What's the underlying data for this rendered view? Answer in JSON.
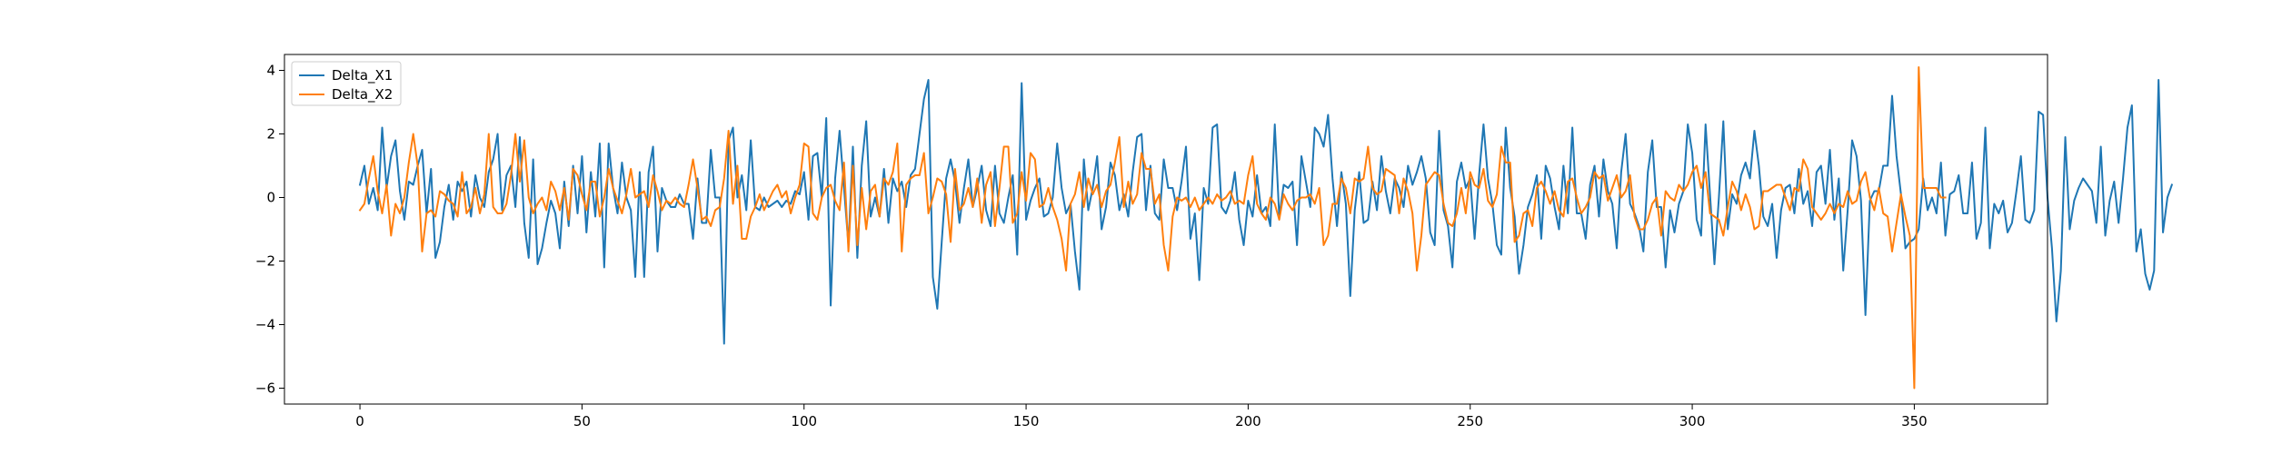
{
  "chart_data": {
    "type": "line",
    "title": "",
    "xlabel": "",
    "ylabel": "",
    "xlim": [
      -17,
      380
    ],
    "ylim": [
      -6.5,
      4.5
    ],
    "xticks": [
      0,
      50,
      100,
      150,
      200,
      250,
      300,
      350
    ],
    "yticks": [
      -6,
      -4,
      -2,
      0,
      2,
      4
    ],
    "grid": false,
    "legend": "upper-left",
    "series": [
      {
        "name": "Delta_X1",
        "color": "#1f77b4",
        "values": [
          0.4,
          1.0,
          -0.2,
          0.3,
          -0.4,
          2.2,
          0.3,
          1.3,
          1.8,
          0.2,
          -0.7,
          0.5,
          0.4,
          1.0,
          1.5,
          -0.5,
          0.9,
          -1.9,
          -1.4,
          -0.3,
          0.4,
          -0.7,
          0.5,
          0.2,
          0.5,
          -0.6,
          0.7,
          0.0,
          -0.3,
          0.8,
          1.2,
          2.0,
          -0.4,
          0.7,
          1.0,
          -0.3,
          1.9,
          -0.8,
          -1.9,
          1.2,
          -2.1,
          -1.6,
          -0.8,
          -0.1,
          -0.5,
          -1.6,
          0.5,
          -0.9,
          1.0,
          -0.5,
          1.3,
          -1.1,
          0.8,
          -0.6,
          1.7,
          -2.2,
          1.7,
          0.3,
          -0.5,
          1.1,
          0.0,
          -0.4,
          -2.5,
          0.8,
          -2.5,
          0.8,
          1.6,
          -1.7,
          0.3,
          -0.1,
          -0.3,
          -0.3,
          0.1,
          -0.2,
          -0.2,
          -1.3,
          0.6,
          -0.8,
          -0.8,
          1.5,
          0.0,
          0.0,
          -4.6,
          1.8,
          2.2,
          0.0,
          0.7,
          -0.4,
          1.8,
          -0.3,
          -0.4,
          0.0,
          -0.3,
          -0.2,
          -0.1,
          -0.3,
          -0.1,
          -0.2,
          0.2,
          0.1,
          0.8,
          -0.7,
          1.3,
          1.4,
          0.0,
          2.5,
          -3.4,
          0.6,
          2.1,
          0.3,
          -1.5,
          1.6,
          -1.9,
          1.0,
          2.4,
          -0.6,
          0.0,
          -0.6,
          0.9,
          -0.8,
          0.6,
          0.2,
          0.5,
          -0.3,
          0.7,
          0.9,
          2.0,
          3.1,
          3.7,
          -2.5,
          -3.5,
          -1.4,
          0.6,
          1.2,
          0.5,
          -0.8,
          0.3,
          1.2,
          -0.3,
          0.3,
          1.0,
          -0.4,
          -0.9,
          1.0,
          -0.5,
          -0.8,
          0.0,
          0.7,
          -1.8,
          3.6,
          -0.7,
          -0.1,
          0.3,
          0.6,
          -0.6,
          -0.5,
          0.0,
          1.7,
          0.3,
          -0.5,
          -0.2,
          -1.7,
          -2.9,
          1.2,
          -0.4,
          0.3,
          1.3,
          -1.0,
          -0.3,
          1.1,
          0.7,
          -0.4,
          0.1,
          -0.6,
          0.8,
          1.9,
          2.0,
          -0.4,
          1.0,
          -0.5,
          -0.7,
          1.2,
          0.3,
          0.3,
          -0.4,
          0.5,
          1.6,
          -1.3,
          -0.5,
          -2.6,
          0.3,
          -0.2,
          2.2,
          2.3,
          -0.3,
          -0.5,
          -0.1,
          0.8,
          -0.7,
          -1.5,
          -0.1,
          -0.6,
          0.7,
          -0.5,
          -0.3,
          -0.9,
          2.3,
          -0.6,
          0.4,
          0.3,
          0.5,
          -1.5,
          1.3,
          0.5,
          -0.3,
          2.2,
          2.0,
          1.6,
          2.6,
          0.6,
          -0.9,
          0.8,
          -0.2,
          -3.1,
          -0.4,
          0.8,
          -0.8,
          -0.7,
          0.5,
          -0.4,
          1.3,
          0.2,
          -0.5,
          0.6,
          0.3,
          -0.3,
          1.0,
          0.4,
          0.8,
          1.3,
          0.6,
          -1.1,
          -1.5,
          2.1,
          -0.4,
          -0.9,
          -2.2,
          0.5,
          1.1,
          0.3,
          0.6,
          -1.3,
          0.7,
          2.3,
          0.6,
          -0.2,
          -1.5,
          -1.8,
          2.2,
          0.3,
          -0.6,
          -2.4,
          -1.5,
          -0.3,
          0.1,
          0.7,
          -1.3,
          1.0,
          0.6,
          -0.3,
          -1.0,
          1.0,
          -0.5,
          2.2,
          -0.5,
          -0.5,
          -1.3,
          0.4,
          1.0,
          -0.6,
          1.2,
          0.2,
          -0.2,
          -1.6,
          0.8,
          2.0,
          -0.2,
          -0.5,
          -0.9,
          -1.7,
          0.8,
          1.8,
          -0.3,
          -0.3,
          -2.2,
          -0.4,
          -1.1,
          -0.2,
          0.2,
          2.3,
          1.4,
          -0.7,
          -1.2,
          2.3,
          0.1,
          -2.1,
          0.0,
          2.4,
          -1.0,
          0.1,
          -0.2,
          0.7,
          1.1,
          0.6,
          2.1,
          1.0,
          -0.6,
          -0.9,
          -0.2,
          -1.9,
          -0.4,
          0.3,
          0.4,
          -0.5,
          0.9,
          -0.2,
          0.2,
          -0.9,
          0.8,
          1.0,
          -0.2,
          1.5,
          -0.7,
          0.6,
          -2.3,
          -0.4,
          1.8,
          1.3,
          -0.1,
          -3.7,
          -0.1,
          0.2,
          0.2,
          1.0,
          1.0,
          3.2,
          1.3,
          0.1,
          -1.6,
          -1.4,
          -1.3,
          -1.0,
          0.6,
          -0.4,
          0.0,
          -0.5,
          1.1,
          -1.2,
          0.1,
          0.2,
          0.7,
          -0.5,
          -0.5,
          1.1,
          -1.3,
          -0.8,
          2.2,
          -1.6,
          -0.2,
          -0.5,
          -0.1,
          -1.1,
          -0.8,
          0.2,
          1.3,
          -0.7,
          -0.8,
          -0.4,
          2.7,
          2.6,
          0.0,
          -1.6,
          -3.9,
          -2.3,
          1.9,
          -1.0,
          -0.1,
          0.3,
          0.6,
          0.4,
          0.2,
          -0.8,
          1.6,
          -1.2,
          -0.1,
          0.5,
          -0.8,
          0.6,
          2.2,
          2.9,
          -1.7,
          -1.0,
          -2.4,
          -2.9,
          -2.3,
          3.7,
          -1.1,
          0.0,
          0.4
        ]
      },
      {
        "name": "Delta_X2",
        "color": "#ff7f0e",
        "values": [
          -0.4,
          -0.2,
          0.6,
          1.3,
          0.2,
          -0.5,
          0.4,
          -1.2,
          -0.2,
          -0.5,
          0.0,
          1.1,
          2.0,
          1.0,
          -1.7,
          -0.5,
          -0.4,
          -0.6,
          0.2,
          0.1,
          -0.1,
          -0.2,
          -0.6,
          0.8,
          -0.5,
          -0.3,
          0.3,
          -0.5,
          0.1,
          2.0,
          -0.3,
          -0.5,
          -0.5,
          -0.2,
          0.7,
          2.0,
          0.5,
          1.8,
          0.0,
          -0.5,
          -0.2,
          0.0,
          -0.4,
          0.5,
          0.2,
          -0.4,
          0.3,
          -0.7,
          0.9,
          0.7,
          0.1,
          -0.4,
          0.5,
          0.5,
          -0.6,
          0.0,
          0.9,
          0.3,
          -0.1,
          -0.5,
          0.1,
          0.9,
          0.0,
          0.1,
          0.2,
          -0.3,
          0.7,
          0.2,
          -0.4,
          -0.1,
          -0.2,
          0.0,
          -0.2,
          -0.3,
          0.4,
          1.2,
          0.3,
          -0.7,
          -0.6,
          -0.9,
          -0.4,
          -0.3,
          0.6,
          2.1,
          -0.2,
          1.0,
          -1.3,
          -1.3,
          -0.6,
          -0.3,
          0.1,
          -0.4,
          -0.1,
          0.2,
          0.4,
          0.0,
          0.2,
          -0.5,
          0.0,
          0.4,
          1.7,
          1.6,
          -0.5,
          -0.7,
          0.0,
          0.3,
          0.4,
          -0.1,
          -0.4,
          1.1,
          -1.7,
          1.0,
          -1.5,
          0.3,
          -1.0,
          0.2,
          0.4,
          -0.6,
          0.6,
          0.4,
          0.8,
          1.7,
          -1.7,
          0.4,
          0.6,
          0.7,
          0.7,
          1.4,
          -0.5,
          0.0,
          0.6,
          0.5,
          0.1,
          -1.4,
          0.9,
          -0.4,
          -0.2,
          0.3,
          -0.3,
          0.6,
          -0.8,
          0.4,
          0.8,
          -0.9,
          0.3,
          1.6,
          1.6,
          -0.8,
          -0.5,
          0.8,
          -0.1,
          1.4,
          1.2,
          -0.3,
          -0.2,
          0.3,
          -0.3,
          -0.7,
          -1.3,
          -2.3,
          -0.2,
          0.1,
          0.8,
          -0.3,
          0.6,
          0.1,
          0.4,
          -0.3,
          0.2,
          0.4,
          1.1,
          1.9,
          -0.3,
          0.5,
          -0.2,
          0.1,
          1.4,
          0.9,
          0.9,
          -0.2,
          0.1,
          -1.5,
          -2.3,
          -0.6,
          0.0,
          -0.1,
          0.0,
          -0.3,
          0.0,
          -0.4,
          -0.2,
          0.0,
          -0.2,
          0.1,
          -0.1,
          0.0,
          0.2,
          -0.2,
          -0.1,
          -0.2,
          0.7,
          1.3,
          -0.2,
          -0.5,
          -0.7,
          0.0,
          -0.2,
          -0.7,
          0.1,
          -0.2,
          -0.4,
          -0.1,
          0.0,
          0.0,
          0.1,
          -0.2,
          0.3,
          -1.5,
          -1.2,
          -0.2,
          -0.2,
          0.6,
          0.3,
          -0.5,
          0.6,
          0.5,
          0.6,
          1.6,
          0.3,
          0.1,
          0.2,
          0.9,
          0.8,
          0.7,
          -0.5,
          0.6,
          0.2,
          -0.5,
          -2.3,
          -1.2,
          0.4,
          0.6,
          0.8,
          0.7,
          -0.2,
          -0.8,
          -0.9,
          -0.5,
          0.3,
          -0.5,
          0.8,
          0.4,
          0.3,
          0.9,
          -0.1,
          -0.3,
          0.1,
          1.6,
          1.1,
          1.1,
          -1.4,
          -1.2,
          -0.5,
          -0.4,
          -0.9,
          0.3,
          0.5,
          0.2,
          -0.2,
          0.2,
          -0.4,
          -0.6,
          0.5,
          0.6,
          0.0,
          -0.5,
          -0.3,
          0.0,
          0.8,
          0.6,
          0.7,
          -0.1,
          0.3,
          0.7,
          0.0,
          0.2,
          0.7,
          -0.6,
          -1.0,
          -1.0,
          -0.7,
          -0.2,
          0.0,
          -1.2,
          0.2,
          0.0,
          -0.1,
          0.4,
          0.2,
          0.4,
          0.8,
          1.0,
          0.3,
          0.8,
          -0.5,
          -0.6,
          -0.7,
          -1.2,
          -0.3,
          0.5,
          0.2,
          -0.4,
          0.1,
          -0.3,
          -1.0,
          -0.9,
          0.2,
          0.2,
          0.3,
          0.4,
          0.4,
          0.0,
          -0.4,
          0.3,
          0.2,
          1.2,
          0.9,
          -0.3,
          -0.5,
          -0.7,
          -0.5,
          -0.2,
          -0.5,
          -0.2,
          -0.3,
          0.2,
          -0.2,
          -0.1,
          0.5,
          0.8,
          0.0,
          -0.4,
          0.3,
          -0.5,
          -0.6,
          -1.7,
          -0.8,
          0.1,
          -0.6,
          -1.2,
          -6.0,
          4.1,
          0.3,
          0.3,
          0.3,
          0.3,
          0.0,
          0.0
        ]
      }
    ]
  }
}
